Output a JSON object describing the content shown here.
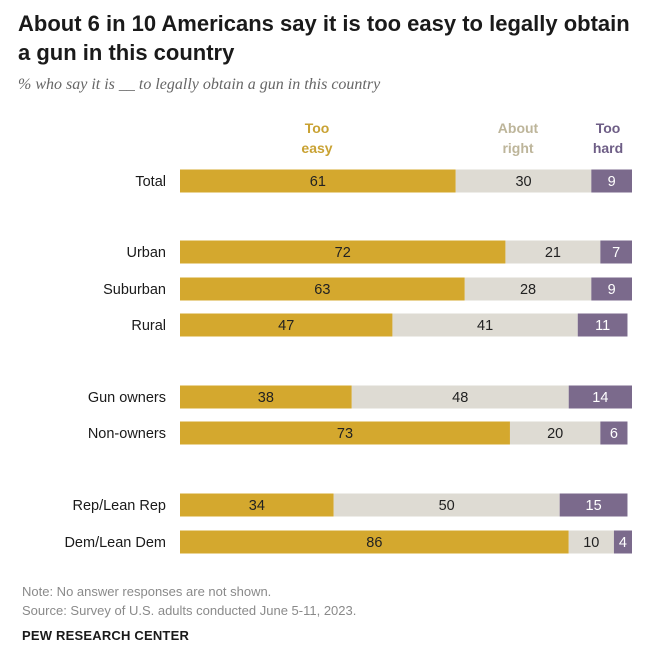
{
  "title": "About 6 in 10 Americans say it is too easy to legally obtain a gun in this country",
  "subtitle": "% who say it is __ to legally obtain a gun in this country",
  "chart_data": {
    "type": "bar",
    "stacked": true,
    "orientation": "horizontal",
    "categories": [
      "Total",
      "Urban",
      "Suburban",
      "Rural",
      "Gun owners",
      "Non-owners",
      "Rep/Lean Rep",
      "Dem/Lean Dem"
    ],
    "series": [
      {
        "name": "Too easy",
        "color": "#D4A82E",
        "values": [
          61,
          72,
          63,
          47,
          38,
          73,
          34,
          86
        ]
      },
      {
        "name": "About right",
        "color": "#DEDBD3",
        "values": [
          30,
          21,
          28,
          41,
          48,
          20,
          50,
          10
        ]
      },
      {
        "name": "Too hard",
        "color": "#7B6A8C",
        "values": [
          9,
          7,
          9,
          11,
          14,
          6,
          15,
          4
        ]
      }
    ],
    "legend_labels": {
      "too_easy": [
        "Too",
        "easy"
      ],
      "about_right": [
        "About",
        "right"
      ],
      "too_hard": [
        "Too",
        "hard"
      ]
    },
    "legend_colors": {
      "too_easy": "#C9A233",
      "about_right": "#BDB59A",
      "too_hard": "#6E5E86"
    }
  },
  "notes": {
    "note": "Note: No answer responses are not shown.",
    "source": "Source: Survey of U.S. adults conducted June 5-11, 2023."
  },
  "brand": "PEW RESEARCH CENTER"
}
